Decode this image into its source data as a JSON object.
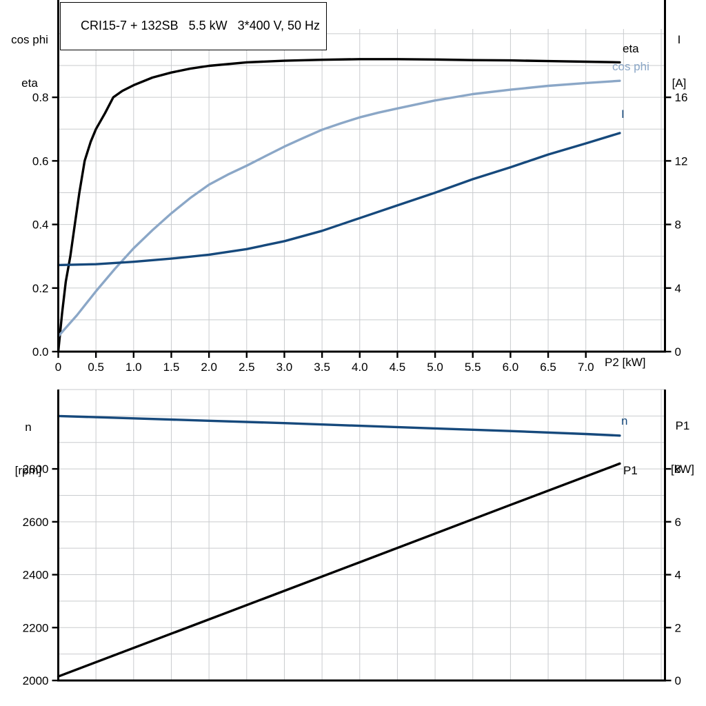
{
  "title_box": {
    "text": "CRI15-7 + 132SB   5.5 kW   3*400 V, 50 Hz"
  },
  "colors": {
    "black": "#000000",
    "light_blue": "#8ba7c7",
    "dark_blue": "#16497c",
    "grid": "#c9cbce",
    "axis": "#000000"
  },
  "top_chart": {
    "left_axis_title": {
      "line1": "cos phi",
      "line2": "eta"
    },
    "right_axis_title": {
      "line1": "I",
      "line2": "[A]"
    },
    "x_axis_title": "P2 [kW]",
    "curve_labels": {
      "eta": "eta",
      "cos_phi": "cos phi",
      "current": "I"
    }
  },
  "bottom_chart": {
    "left_axis_title": {
      "line1": "n",
      "line2": "[rpm]"
    },
    "right_axis_title": {
      "line1": "P1",
      "line2": "[kW]"
    },
    "curve_labels": {
      "n": "n",
      "p1": "P1"
    }
  },
  "chart_data": [
    {
      "type": "line",
      "title": "CRI15-7 + 132SB  5.5 kW  3*400 V, 50 Hz",
      "xlabel": "P2 [kW]",
      "ylabel_left": "cos phi / eta",
      "ylabel_right": "I [A]",
      "xlim": [
        0,
        8.05
      ],
      "ylim_left": [
        0,
        1.015
      ],
      "ylim_right": [
        0,
        20.3
      ],
      "grid_x_step": 0.5,
      "grid_y_left_step": 0.1,
      "legend_position": "end-of-curve",
      "xticks": {
        "values": [
          0,
          0.5,
          1,
          1.5,
          2,
          2.5,
          3,
          3.5,
          4,
          4.5,
          5,
          5.5,
          6,
          6.5,
          7
        ],
        "labels": [
          "0",
          "0.5",
          "1.0",
          "1.5",
          "2.0",
          "2.5",
          "3.0",
          "3.5",
          "4.0",
          "4.5",
          "5.0",
          "5.5",
          "6.0",
          "6.5",
          "7.0"
        ]
      },
      "yticks_left": {
        "values": [
          0,
          0.2,
          0.4,
          0.6,
          0.8
        ],
        "labels": [
          "0.0",
          "0.2",
          "0.4",
          "0.6",
          "0.8"
        ]
      },
      "yticks_right": {
        "values": [
          0,
          4,
          8,
          12,
          16
        ],
        "labels": [
          "0",
          "4",
          "8",
          "12",
          "16"
        ]
      },
      "series": [
        {
          "name": "eta",
          "axis": "left",
          "color": "#000000",
          "points": [
            [
              0,
              0
            ],
            [
              0.05,
              0.12
            ],
            [
              0.1,
              0.22
            ],
            [
              0.16,
              0.3
            ],
            [
              0.22,
              0.4
            ],
            [
              0.28,
              0.5
            ],
            [
              0.35,
              0.6
            ],
            [
              0.43,
              0.66
            ],
            [
              0.5,
              0.7
            ],
            [
              0.62,
              0.75
            ],
            [
              0.73,
              0.8
            ],
            [
              0.85,
              0.82
            ],
            [
              1,
              0.838
            ],
            [
              1.25,
              0.862
            ],
            [
              1.5,
              0.878
            ],
            [
              1.75,
              0.89
            ],
            [
              2,
              0.899
            ],
            [
              2.5,
              0.91
            ],
            [
              3,
              0.915
            ],
            [
              3.5,
              0.918
            ],
            [
              4,
              0.92
            ],
            [
              4.5,
              0.92
            ],
            [
              5,
              0.919
            ],
            [
              5.5,
              0.917
            ],
            [
              6,
              0.916
            ],
            [
              6.5,
              0.914
            ],
            [
              7,
              0.912
            ],
            [
              7.45,
              0.91
            ]
          ]
        },
        {
          "name": "cos phi",
          "axis": "left",
          "color": "#8ba7c7",
          "points": [
            [
              0,
              0.048
            ],
            [
              0.25,
              0.115
            ],
            [
              0.5,
              0.19
            ],
            [
              0.75,
              0.26
            ],
            [
              1,
              0.325
            ],
            [
              1.25,
              0.382
            ],
            [
              1.5,
              0.435
            ],
            [
              1.75,
              0.483
            ],
            [
              2,
              0.525
            ],
            [
              2.25,
              0.557
            ],
            [
              2.5,
              0.585
            ],
            [
              2.75,
              0.615
            ],
            [
              3,
              0.645
            ],
            [
              3.25,
              0.672
            ],
            [
              3.5,
              0.698
            ],
            [
              3.75,
              0.718
            ],
            [
              4,
              0.737
            ],
            [
              4.25,
              0.752
            ],
            [
              4.5,
              0.765
            ],
            [
              5,
              0.79
            ],
            [
              5.5,
              0.81
            ],
            [
              6,
              0.824
            ],
            [
              6.5,
              0.836
            ],
            [
              7,
              0.845
            ],
            [
              7.45,
              0.852
            ]
          ]
        },
        {
          "name": "I",
          "axis": "right",
          "color": "#16497c",
          "points": [
            [
              0,
              5.45
            ],
            [
              0.5,
              5.5
            ],
            [
              1,
              5.65
            ],
            [
              1.5,
              5.85
            ],
            [
              2,
              6.1
            ],
            [
              2.5,
              6.45
            ],
            [
              3,
              6.95
            ],
            [
              3.5,
              7.6
            ],
            [
              4,
              8.4
            ],
            [
              4.5,
              9.2
            ],
            [
              5,
              10
            ],
            [
              5.5,
              10.85
            ],
            [
              6,
              11.6
            ],
            [
              6.5,
              12.4
            ],
            [
              7,
              13.1
            ],
            [
              7.45,
              13.75
            ]
          ]
        }
      ]
    },
    {
      "type": "line",
      "title": "",
      "xlabel": "P2 [kW]",
      "ylabel_left": "n [rpm]",
      "ylabel_right": "P1 [kW]",
      "xlim": [
        0,
        8.05
      ],
      "ylim_left": [
        2000,
        3100
      ],
      "ylim_right": [
        0,
        11
      ],
      "grid_x_step": 0.5,
      "grid_y_left_step": 100,
      "legend_position": "end-of-curve",
      "xticks": {
        "values": [],
        "labels": []
      },
      "yticks_left": {
        "values": [
          2000,
          2200,
          2400,
          2600,
          2800
        ],
        "labels": [
          "2000",
          "2200",
          "2400",
          "2600",
          "2800"
        ]
      },
      "yticks_right": {
        "values": [
          0,
          2,
          4,
          6,
          8
        ],
        "labels": [
          "0",
          "2",
          "4",
          "6",
          "8"
        ]
      },
      "series": [
        {
          "name": "n",
          "axis": "left",
          "color": "#16497c",
          "points": [
            [
              0,
              3000
            ],
            [
              1,
              2991
            ],
            [
              2,
              2982
            ],
            [
              3,
              2973
            ],
            [
              4,
              2963
            ],
            [
              5,
              2953
            ],
            [
              6,
              2943
            ],
            [
              7,
              2932
            ],
            [
              7.45,
              2926
            ]
          ]
        },
        {
          "name": "P1",
          "axis": "right",
          "color": "#000000",
          "points": [
            [
              0,
              0.15
            ],
            [
              2,
              2.31
            ],
            [
              4,
              4.47
            ],
            [
              6,
              6.64
            ],
            [
              7.45,
              8.2
            ]
          ]
        }
      ]
    }
  ]
}
